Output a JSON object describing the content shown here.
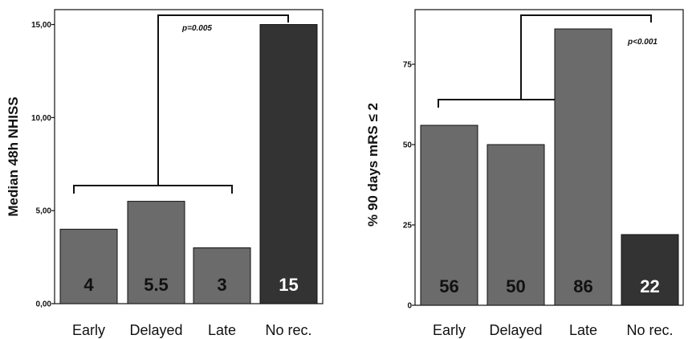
{
  "chart_data": [
    {
      "type": "bar",
      "categories": [
        "Early",
        "Delayed",
        "Late",
        "No rec."
      ],
      "values": [
        4,
        5.5,
        3,
        15
      ],
      "data_labels": [
        "4",
        "5.5",
        "3",
        "15"
      ],
      "ylabel": "Median 48h NHISS",
      "yticks": [
        "0,00",
        "5,00",
        "10,00",
        "15,00"
      ],
      "ytick_values": [
        0,
        5,
        10,
        15
      ],
      "ylim": [
        0,
        15.8
      ],
      "annotation": "p=0.005",
      "colors": {
        "group": "#6b6b6b",
        "highlight": "#333333",
        "label_dark": "#111111",
        "label_light": "#ffffff"
      }
    },
    {
      "type": "bar",
      "categories": [
        "Early",
        "Delayed",
        "Late",
        "No rec."
      ],
      "values": [
        56,
        50,
        86,
        22
      ],
      "data_labels": [
        "56",
        "50",
        "86",
        "22"
      ],
      "ylabel": "% 90 days mRS ≤ 2",
      "yticks": [
        "0",
        "25",
        "50",
        "75"
      ],
      "ytick_values": [
        0,
        25,
        50,
        75
      ],
      "ylim": [
        0,
        92
      ],
      "annotation": "p<0.001",
      "colors": {
        "group": "#6b6b6b",
        "highlight": "#333333",
        "label_dark": "#111111",
        "label_light": "#ffffff"
      }
    }
  ]
}
